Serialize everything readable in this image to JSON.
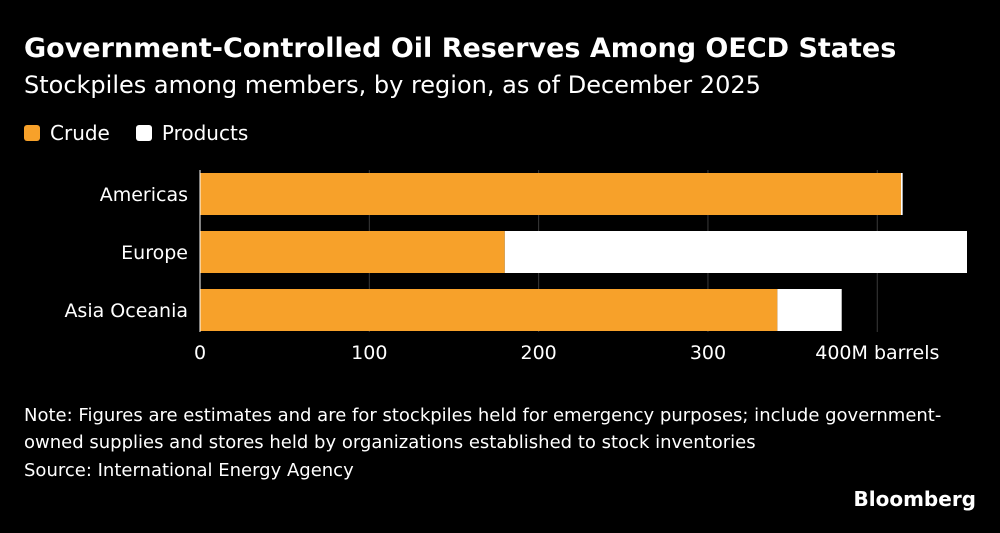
{
  "title": "Government-Controlled Oil Reserves Among OECD States",
  "subtitle": "Stockpiles among members, by region, as of December 2025",
  "note": "Note: Figures are estimates and are for stockpiles held for emergency purposes; include government-owned supplies and stores held by organizations established to stock inventories",
  "source": "Source: International Energy Agency",
  "brand": "Bloomberg",
  "colors": {
    "background": "#000000",
    "crude": "#f7a12a",
    "products": "#ffffff",
    "grid": "#3a3a3a"
  },
  "chart_data": {
    "type": "bar",
    "orientation": "horizontal",
    "stacked": true,
    "categories": [
      "Americas",
      "Europe",
      "Asia Oceania"
    ],
    "series": [
      {
        "name": "Crude",
        "color": "#f7a12a",
        "values": [
          414,
          180,
          341
        ]
      },
      {
        "name": "Products",
        "color": "#ffffff",
        "values": [
          1,
          273,
          38
        ]
      }
    ],
    "xlim": [
      0,
      453
    ],
    "xticks": [
      0,
      100,
      200,
      300,
      400
    ],
    "xtick_labels": [
      "0",
      "100",
      "200",
      "300",
      "400M barrels"
    ],
    "grid": true,
    "legend": "top-left"
  }
}
